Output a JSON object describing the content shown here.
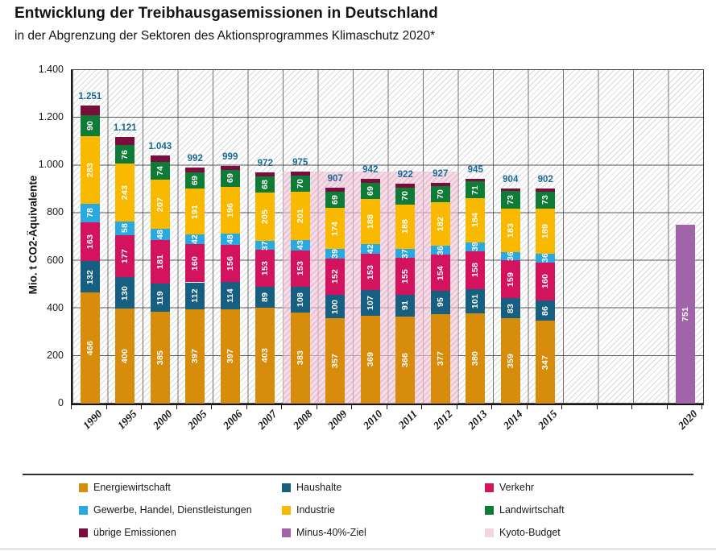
{
  "header": {
    "title": "Entwicklung der Treibhausgasemissionen in Deutschland",
    "subtitle": "in der Abgrenzung der Sektoren des Aktionsprogrammes Klimaschutz 2020*"
  },
  "chart_data": {
    "type": "bar",
    "stacked": true,
    "title": "Entwicklung der Treibhausgasemissionen in Deutschland",
    "subtitle": "in der Abgrenzung der Sektoren des Aktionsprogrammes Klimaschutz 2020*",
    "xlabel": "",
    "ylabel": "Mio. t CO2-Äquivalente",
    "ylim": [
      0,
      1400
    ],
    "ytick_step": 200,
    "ytick_labels": [
      "0",
      "200",
      "400",
      "600",
      "800",
      "1.000",
      "1.200",
      "1.400"
    ],
    "grid": true,
    "categories": [
      "1990",
      "1995",
      "2000",
      "2005",
      "2006",
      "2007",
      "2008",
      "2009",
      "2010",
      "2011",
      "2012",
      "2013",
      "2014",
      "2015"
    ],
    "series": [
      {
        "name": "Energiewirtschaft",
        "color": "#D88C0B",
        "values": [
          466,
          400,
          385,
          397,
          397,
          403,
          383,
          357,
          369,
          366,
          377,
          380,
          359,
          347
        ]
      },
      {
        "name": "Haushalte",
        "color": "#175F80",
        "values": [
          132,
          130,
          119,
          112,
          114,
          89,
          108,
          100,
          107,
          91,
          95,
          101,
          83,
          86
        ]
      },
      {
        "name": "Verkehr",
        "color": "#D4135E",
        "values": [
          163,
          177,
          181,
          160,
          156,
          153,
          153,
          152,
          153,
          155,
          154,
          158,
          159,
          160
        ]
      },
      {
        "name": "Gewerbe, Handel, Dienstleistungen",
        "color": "#29A9DF",
        "values": [
          78,
          58,
          48,
          42,
          48,
          37,
          43,
          39,
          42,
          37,
          36,
          39,
          36,
          36
        ]
      },
      {
        "name": "Industrie",
        "color": "#F9B900",
        "values": [
          283,
          243,
          207,
          191,
          196,
          205,
          201,
          174,
          188,
          188,
          182,
          184,
          183,
          189
        ]
      },
      {
        "name": "Landwirtschaft",
        "color": "#0E7B37",
        "values": [
          90,
          76,
          74,
          69,
          69,
          68,
          70,
          69,
          69,
          70,
          70,
          71,
          73,
          73
        ]
      },
      {
        "name": "übrige Emissionen",
        "color": "#7B0D3C",
        "show_value_labels": false,
        "values": [
          39,
          37,
          29,
          21,
          19,
          17,
          17,
          16,
          14,
          15,
          13,
          12,
          11,
          11
        ]
      }
    ],
    "totals": [
      1251,
      1121,
      1043,
      992,
      999,
      972,
      975,
      907,
      942,
      922,
      927,
      945,
      904,
      902
    ],
    "total_labels": [
      "1.251",
      "1.121",
      "1.043",
      "992",
      "999",
      "972",
      "975",
      "907",
      "942",
      "922",
      "927",
      "945",
      "904",
      "902"
    ],
    "total_label_color": "#186A94",
    "target_bar": {
      "category": "2020",
      "name": "Minus-40%-Ziel",
      "value": 751,
      "label": "751",
      "color": "#A164A8"
    },
    "kyoto_band": {
      "name": "Kyoto-Budget",
      "from_category": "2008",
      "to_category": "2012",
      "top_value": 973,
      "color": "#F2C9DB"
    },
    "legend_position": "bottom"
  },
  "legend": {
    "items": [
      {
        "label": "Energiewirtschaft",
        "color": "#D88C0B"
      },
      {
        "label": "Haushalte",
        "color": "#175F80"
      },
      {
        "label": "Verkehr",
        "color": "#D4135E"
      },
      {
        "label": "Gewerbe, Handel, Dienstleistungen",
        "color": "#29A9DF"
      },
      {
        "label": "Industrie",
        "color": "#F9B900"
      },
      {
        "label": "Landwirtschaft",
        "color": "#0E7B37"
      },
      {
        "label": "übrige Emissionen",
        "color": "#7B0D3C"
      },
      {
        "label": "Minus-40%-Ziel",
        "color": "#A164A8"
      },
      {
        "label": "Kyoto-Budget",
        "color": "#F6D3E1"
      }
    ]
  }
}
